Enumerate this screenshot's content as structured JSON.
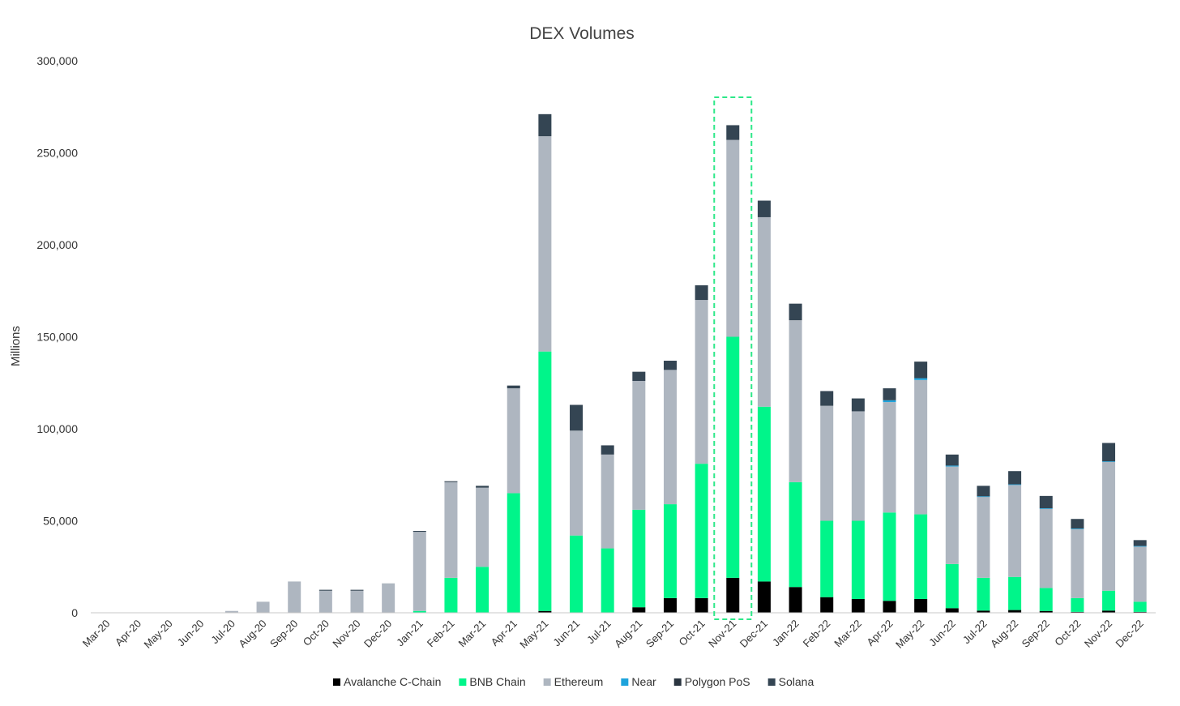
{
  "chart_data": {
    "type": "bar",
    "stacked": true,
    "title": "DEX Volumes",
    "xlabel": "",
    "ylabel": "Millions",
    "ylim": [
      0,
      300000
    ],
    "yticks": [
      0,
      50000,
      100000,
      150000,
      200000,
      250000,
      300000
    ],
    "ytick_labels": [
      "0",
      "50,000",
      "100,000",
      "150,000",
      "200,000",
      "250,000",
      "300,000"
    ],
    "grid": false,
    "legend_position": "bottom",
    "highlighted_category": "Nov-21",
    "categories": [
      "Mar-20",
      "Apr-20",
      "May-20",
      "Jun-20",
      "Jul-20",
      "Aug-20",
      "Sep-20",
      "Oct-20",
      "Nov-20",
      "Dec-20",
      "Jan-21",
      "Feb-21",
      "Mar-21",
      "Apr-21",
      "May-21",
      "Jun-21",
      "Jul-21",
      "Aug-21",
      "Sep-21",
      "Oct-21",
      "Nov-21",
      "Dec-21",
      "Jan-22",
      "Feb-22",
      "Mar-22",
      "Apr-22",
      "May-22",
      "Jun-22",
      "Jul-22",
      "Aug-22",
      "Sep-22",
      "Oct-22",
      "Nov-22",
      "Dec-22"
    ],
    "series": [
      {
        "name": "Avalanche C-Chain",
        "color": "#000000",
        "values": [
          0,
          0,
          0,
          0,
          0,
          0,
          0,
          0,
          0,
          0,
          0,
          0,
          0,
          0,
          1000,
          0,
          0,
          3000,
          8000,
          8000,
          19000,
          17000,
          14000,
          8500,
          7500,
          6500,
          7500,
          2500,
          1200,
          1500,
          1000,
          500,
          1200,
          500
        ]
      },
      {
        "name": "BNB Chain",
        "color": "#00f58a",
        "values": [
          0,
          0,
          0,
          0,
          0,
          0,
          0,
          0,
          0,
          0,
          1000,
          19000,
          25000,
          65000,
          141000,
          42000,
          35000,
          53000,
          51000,
          73000,
          131000,
          95000,
          57000,
          41500,
          42500,
          48000,
          46000,
          24000,
          17800,
          18000,
          12500,
          7500,
          10800,
          5500
        ]
      },
      {
        "name": "Ethereum",
        "color": "#aeb6c0",
        "values": [
          0,
          0,
          0,
          0,
          1000,
          6000,
          17000,
          12000,
          12000,
          16000,
          43000,
          52000,
          43000,
          57000,
          117000,
          57000,
          51000,
          70000,
          73000,
          89000,
          107000,
          103000,
          88000,
          62500,
          59500,
          60000,
          73000,
          53000,
          44000,
          50000,
          43000,
          37500,
          70000,
          30000
        ]
      },
      {
        "name": "Near",
        "color": "#1ea3dc",
        "values": [
          0,
          0,
          0,
          0,
          0,
          0,
          0,
          0,
          0,
          0,
          0,
          0,
          0,
          0,
          0,
          0,
          0,
          0,
          0,
          0,
          0,
          0,
          0,
          0,
          0,
          1000,
          1000,
          500,
          300,
          300,
          300,
          300,
          300,
          300
        ]
      },
      {
        "name": "Polygon PoS",
        "color": "#2a3540",
        "values": [
          0,
          0,
          0,
          0,
          0,
          0,
          0,
          0,
          0,
          0,
          0,
          0,
          0,
          0,
          0,
          0,
          0,
          0,
          0,
          0,
          0,
          0,
          0,
          0,
          0,
          0,
          0,
          0,
          0,
          0,
          0,
          0,
          0,
          0
        ]
      },
      {
        "name": "Solana",
        "color": "#344553",
        "values": [
          0,
          0,
          0,
          0,
          0,
          0,
          0,
          500,
          500,
          0,
          500,
          500,
          1000,
          1500,
          12000,
          14000,
          5000,
          5000,
          5000,
          8000,
          8000,
          9000,
          9000,
          8000,
          7000,
          6500,
          9000,
          6000,
          5700,
          7200,
          6700,
          5200,
          10000,
          3200
        ]
      }
    ]
  }
}
